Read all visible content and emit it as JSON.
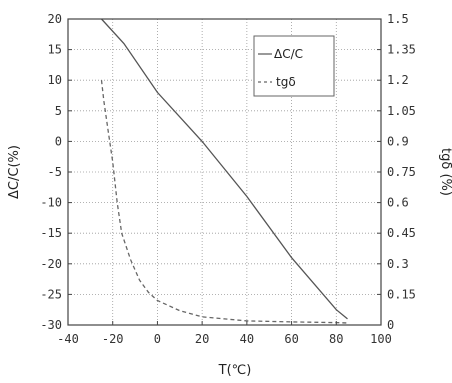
{
  "chart_data": {
    "type": "line",
    "xlabel": "T(℃)",
    "ylabel_left": "ΔC/C(%)",
    "ylabel_right": "tgδ (%)",
    "xlim": [
      -40,
      100
    ],
    "ylim_left": [
      -30,
      20
    ],
    "ylim_right": [
      0,
      1.5
    ],
    "x_ticks": [
      "-40",
      "-20",
      "0",
      "20",
      "40",
      "60",
      "80",
      "100"
    ],
    "y_left_ticks": [
      "20",
      "15",
      "10",
      "5",
      "0",
      "-5",
      "-10",
      "-15",
      "-20",
      "-25",
      "-30"
    ],
    "y_right_ticks": [
      "1.5",
      "1.35",
      "1.2",
      "1.05",
      "0.9",
      "0.75",
      "0.6",
      "0.45",
      "0.3",
      "0.15",
      "0"
    ],
    "grid": true,
    "legend_position": "top-right",
    "series": [
      {
        "name": "ΔC/C",
        "axis": "left",
        "style": "solid",
        "color": "#555555",
        "x": [
          -25,
          -15,
          0,
          20,
          40,
          60,
          80,
          85
        ],
        "y": [
          20,
          16,
          8,
          0,
          -9,
          -19,
          -27.5,
          -29
        ]
      },
      {
        "name": "tgδ",
        "axis": "right",
        "style": "dashed",
        "color": "#666666",
        "x": [
          -25,
          -24,
          -22,
          -20,
          -18,
          -16,
          -12,
          -8,
          -4,
          0,
          10,
          20,
          30,
          40,
          60,
          80,
          85
        ],
        "y": [
          1.2,
          1.1,
          0.95,
          0.8,
          0.6,
          0.45,
          0.32,
          0.22,
          0.16,
          0.12,
          0.07,
          0.04,
          0.03,
          0.02,
          0.015,
          0.012,
          0.01
        ]
      }
    ]
  }
}
